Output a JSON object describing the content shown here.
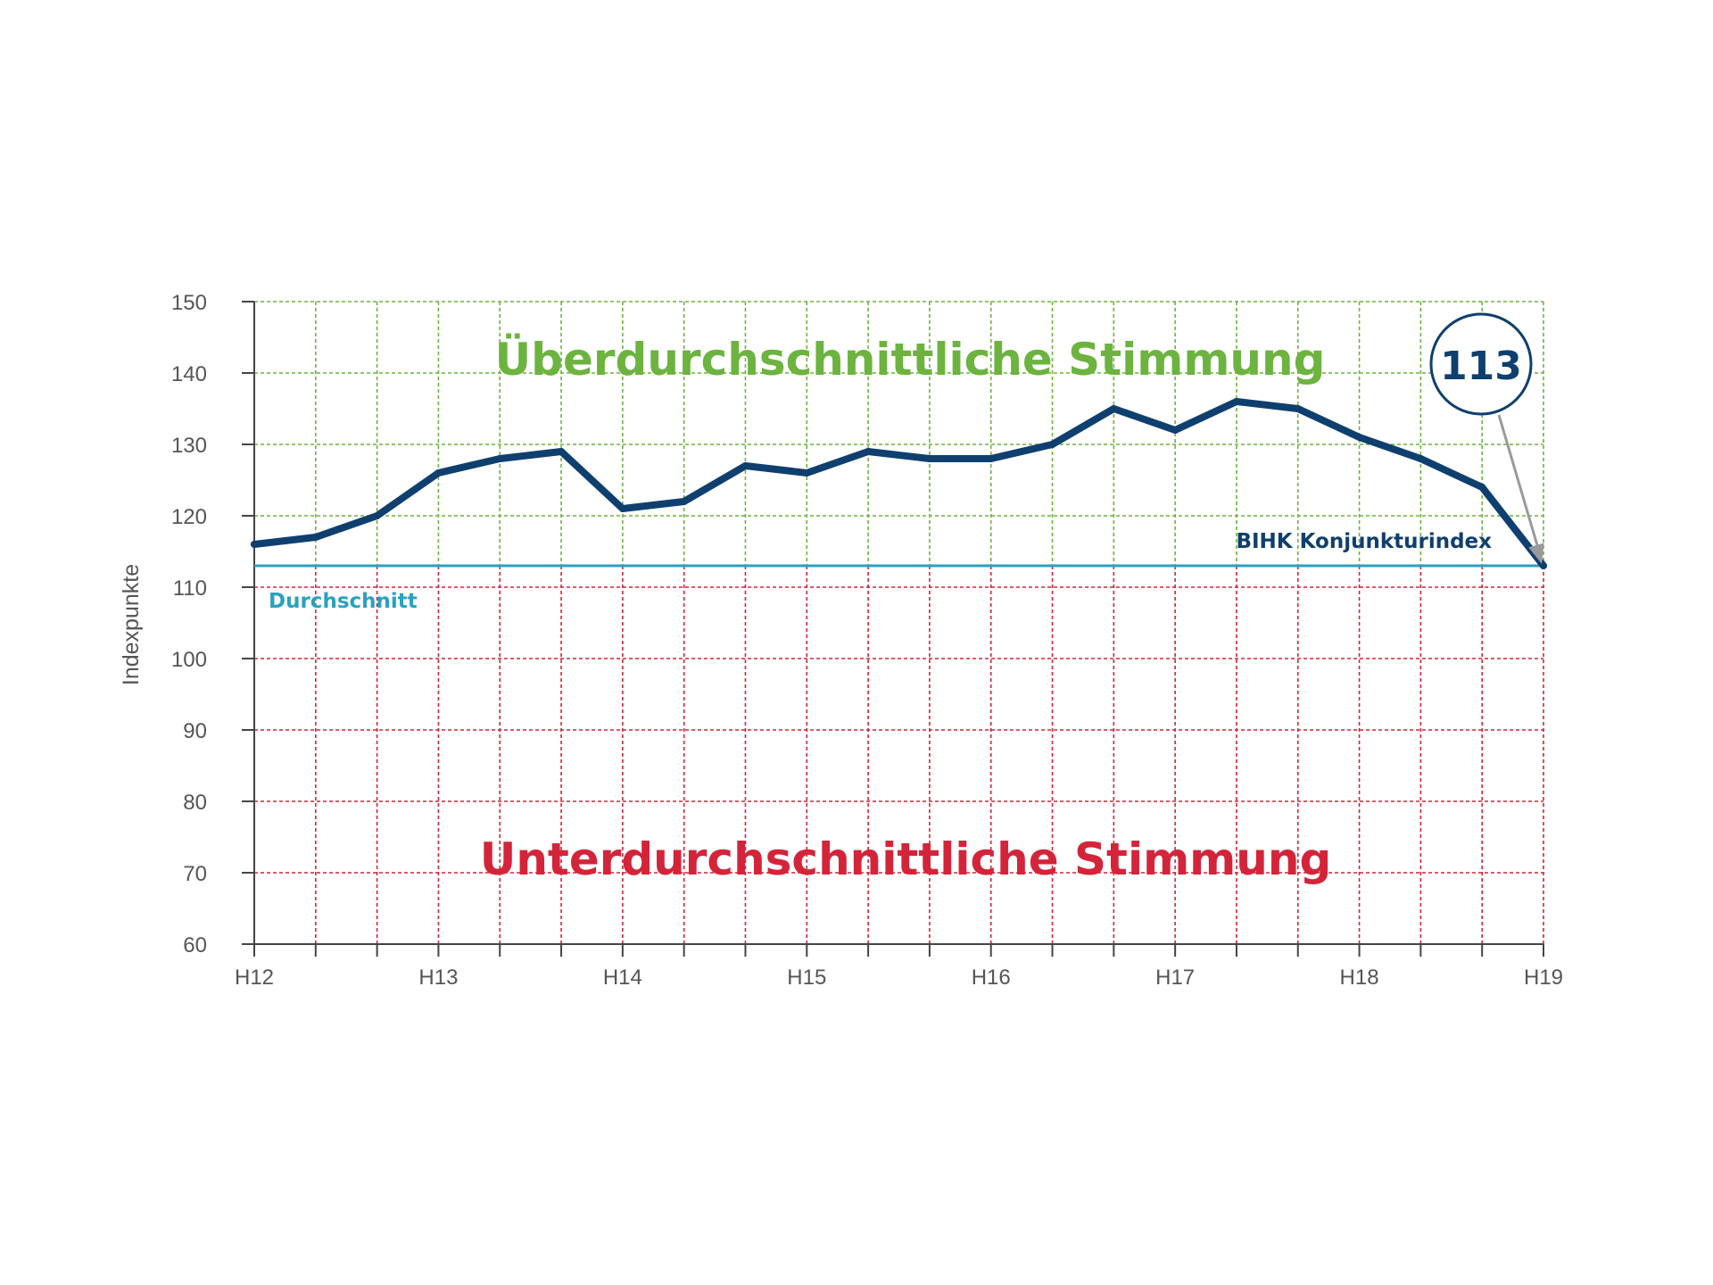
{
  "chart_data": {
    "type": "line",
    "ylabel": "Indexpunkte",
    "ylim": [
      60,
      150
    ],
    "yticks": [
      "150",
      "140",
      "130",
      "120",
      "110",
      "100",
      "90",
      "80",
      "70",
      "60"
    ],
    "xticks": [
      "H12",
      "H13",
      "H14",
      "H15",
      "H16",
      "H17",
      "H18",
      "H19"
    ],
    "grid": true,
    "zones": {
      "above": {
        "label": "Überdurchschnittliche Stimmung",
        "color": "#6db33f"
      },
      "below": {
        "label": "Unterdurchschnittliche Stimmung",
        "color": "#d4243a"
      }
    },
    "average": {
      "label": "Durchschnitt",
      "value": 113,
      "color": "#2aa1bf"
    },
    "series": [
      {
        "name": "BIHK Konjunkturindex",
        "color": "#0f3f6e",
        "values": [
          116,
          117,
          120,
          126,
          128,
          129,
          121,
          122,
          127,
          126,
          129,
          128,
          128,
          130,
          135,
          132,
          136,
          135,
          131,
          128,
          124,
          113
        ]
      }
    ],
    "callout": {
      "text": "113",
      "color": "#0f3f6e"
    }
  }
}
